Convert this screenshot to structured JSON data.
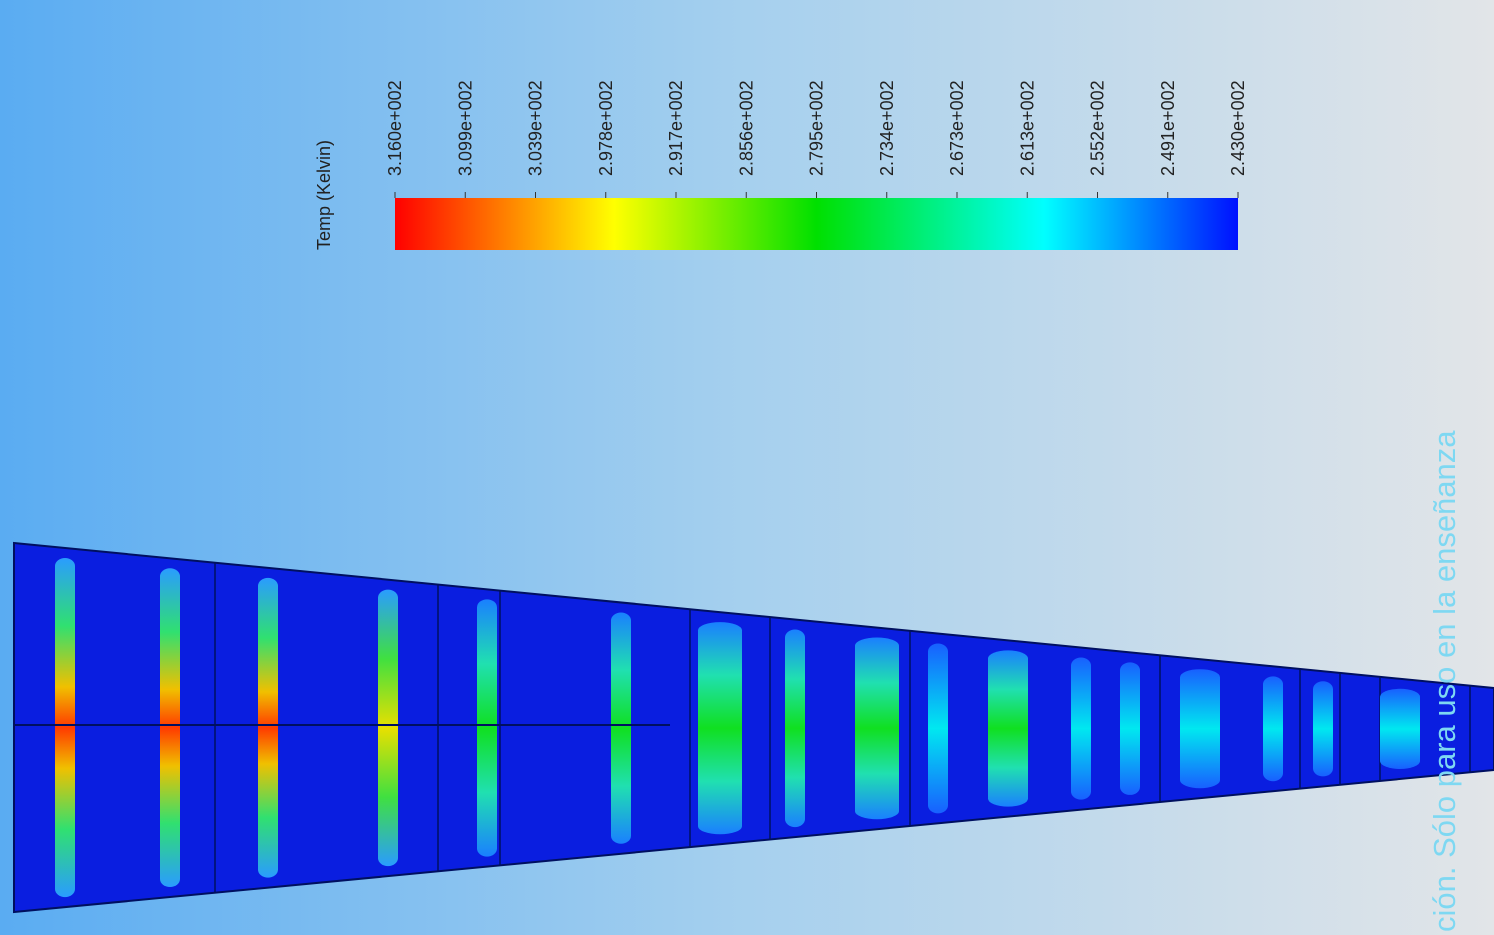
{
  "legend": {
    "title": "Temp (Kelvin)",
    "labels": [
      "3.160e+002",
      "3.099e+002",
      "3.039e+002",
      "2.978e+002",
      "2.917e+002",
      "2.856e+002",
      "2.795e+002",
      "2.734e+002",
      "2.673e+002",
      "2.613e+002",
      "2.552e+002",
      "2.491e+002",
      "2.430e+002"
    ]
  },
  "watermark": "ción. Sólo para uso en la enseñanza"
}
